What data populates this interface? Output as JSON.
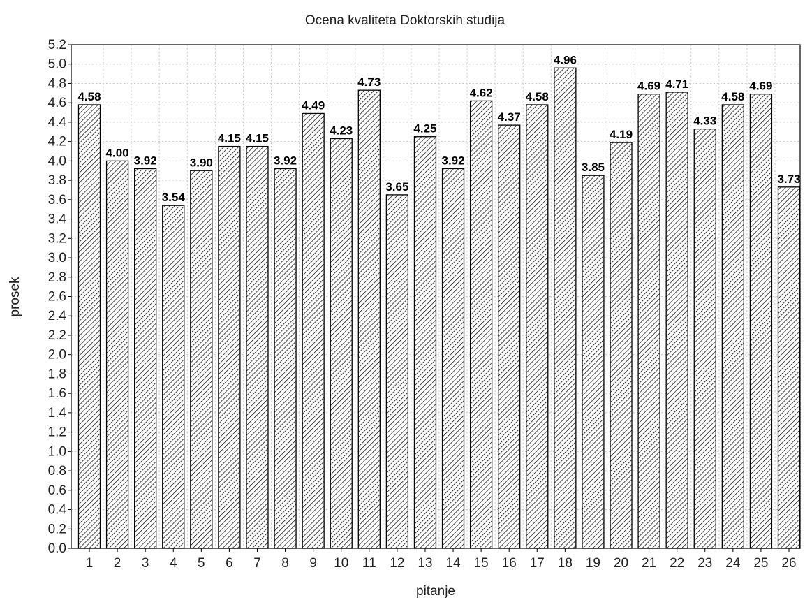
{
  "chart_data": {
    "type": "bar",
    "title": "Ocena kvaliteta Doktorskih studija",
    "xlabel": "pitanje",
    "ylabel": "prosek",
    "ylim": [
      0,
      5.2
    ],
    "ytick_step": 0.2,
    "grid": true,
    "bar_pattern": "diagonal-hatch",
    "bar_color": "#000000",
    "categories": [
      "1",
      "2",
      "3",
      "4",
      "5",
      "6",
      "7",
      "8",
      "9",
      "10",
      "11",
      "12",
      "13",
      "14",
      "15",
      "16",
      "17",
      "18",
      "19",
      "20",
      "21",
      "22",
      "23",
      "24",
      "25",
      "26"
    ],
    "values": [
      4.58,
      4.0,
      3.92,
      3.54,
      3.9,
      4.15,
      4.15,
      3.92,
      4.49,
      4.23,
      4.73,
      3.65,
      4.25,
      3.92,
      4.62,
      4.37,
      4.58,
      4.96,
      3.85,
      4.19,
      4.69,
      4.71,
      4.33,
      4.58,
      4.69,
      3.73
    ],
    "value_labels": [
      "4.58",
      "4.00",
      "3.92",
      "3.54",
      "3.90",
      "4.15",
      "4.15",
      "3.92",
      "4.49",
      "4.23",
      "4.73",
      "3.65",
      "4.25",
      "3.92",
      "4.62",
      "4.37",
      "4.58",
      "4.96",
      "3.85",
      "4.19",
      "4.69",
      "4.71",
      "4.33",
      "4.58",
      "4.69",
      "3.73"
    ]
  }
}
